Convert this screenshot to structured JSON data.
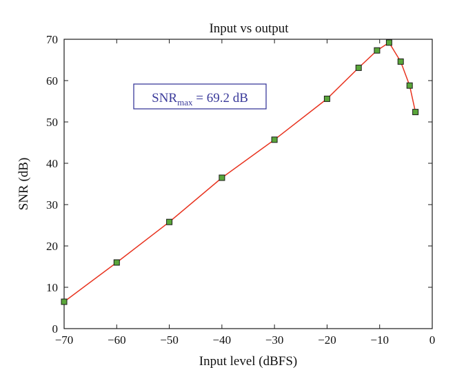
{
  "chart_data": {
    "type": "line",
    "title": "Input vs output",
    "xlabel": "Input level (dBFS)",
    "ylabel": "SNR (dB)",
    "xlim": [
      -70,
      0
    ],
    "ylim": [
      0,
      70
    ],
    "xticks": [
      -70,
      -60,
      -50,
      -40,
      -30,
      -20,
      -10,
      0
    ],
    "yticks": [
      0,
      10,
      20,
      30,
      40,
      50,
      60,
      70
    ],
    "xtick_labels": [
      "−70",
      "−60",
      "−50",
      "−40",
      "−30",
      "−20",
      "−10",
      "0"
    ],
    "ytick_labels": [
      "0",
      "10",
      "20",
      "30",
      "40",
      "50",
      "60",
      "70"
    ],
    "grid": false,
    "series": [
      {
        "x": [
          -70,
          -60,
          -50,
          -40,
          -30,
          -20,
          -14,
          -10.5,
          -8.2,
          -6,
          -4.3,
          -3.2
        ],
        "y": [
          6.5,
          16.0,
          25.8,
          36.5,
          45.7,
          55.6,
          63.1,
          67.3,
          69.2,
          64.6,
          58.8,
          52.4
        ],
        "line_color": "#e8321e",
        "marker": "square",
        "marker_fill": "#5aa63a",
        "marker_edge": "#1a1a1a"
      }
    ],
    "annotation": {
      "main": "SNR",
      "subscript": "max",
      "value": " = 69.2 dB",
      "color": "#3a3a9a"
    }
  }
}
